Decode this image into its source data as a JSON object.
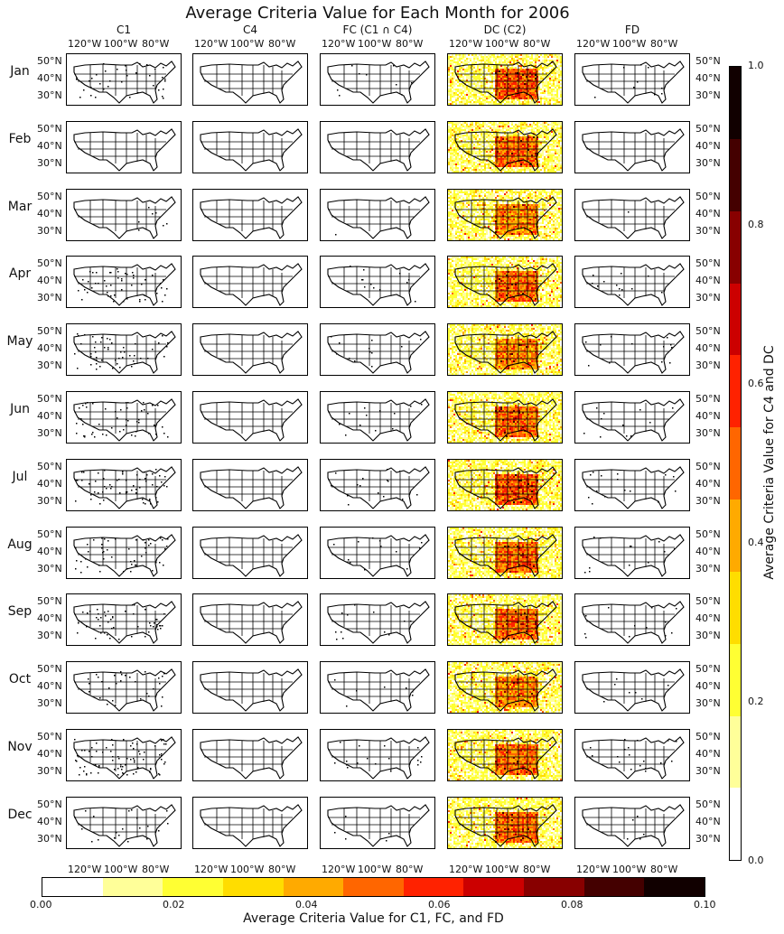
{
  "title": "Average Criteria Value for Each Month for 2006",
  "columns": [
    "C1",
    "C4",
    "FC ($C1 \\cap C4$)",
    "DC (C2)",
    "FD"
  ],
  "column_display": [
    "C1",
    "C4",
    "FC (C1 ∩ C4)",
    "DC (C2)",
    "FD"
  ],
  "months": [
    "Jan",
    "Feb",
    "Mar",
    "Apr",
    "May",
    "Jun",
    "Jul",
    "Aug",
    "Sep",
    "Oct",
    "Nov",
    "Dec"
  ],
  "lon_ticks": [
    "120°W",
    "100°W",
    "80°W"
  ],
  "lat_ticks": [
    "50°N",
    "40°N",
    "30°N"
  ],
  "colorbar_vertical": {
    "label": "Average Criteria Value for C4 and DC",
    "ticks": [
      "0.0",
      "0.2",
      "0.4",
      "0.6",
      "0.8",
      "1.0"
    ],
    "range": [
      0.0,
      1.0
    ]
  },
  "colorbar_horizontal": {
    "label": "Average Criteria Value for C1, FC, and FD",
    "ticks": [
      "0.00",
      "0.02",
      "0.04",
      "0.06",
      "0.08",
      "0.10"
    ],
    "range": [
      0.0,
      0.1
    ]
  },
  "colormap": [
    "#ffffff",
    "#ffff99",
    "#ffff33",
    "#ffdd00",
    "#ffaa00",
    "#ff6600",
    "#ff2200",
    "#cc0000",
    "#880000",
    "#440000",
    "#110000"
  ],
  "chart_data": {
    "type": "heatmap",
    "title": "Average Criteria Value for Each Month for 2006",
    "rows": [
      "Jan",
      "Feb",
      "Mar",
      "Apr",
      "May",
      "Jun",
      "Jul",
      "Aug",
      "Sep",
      "Oct",
      "Nov",
      "Dec"
    ],
    "columns": [
      "C1",
      "C4",
      "FC ($C1 \\cap C4$)",
      "DC (C2)",
      "FD"
    ],
    "xlabel_ticks": [
      "120°W",
      "100°W",
      "80°W"
    ],
    "ylabel_ticks": [
      "50°N",
      "40°N",
      "30°N"
    ],
    "dc_intensity_by_month": [
      0.55,
      0.5,
      0.45,
      0.5,
      0.45,
      0.5,
      0.55,
      0.5,
      0.5,
      0.45,
      0.5,
      0.5
    ],
    "c1_speckle_by_month": [
      0.015,
      0.0,
      0.003,
      0.02,
      0.02,
      0.02,
      0.025,
      0.02,
      0.02,
      0.012,
      0.03,
      0.008
    ]
  }
}
